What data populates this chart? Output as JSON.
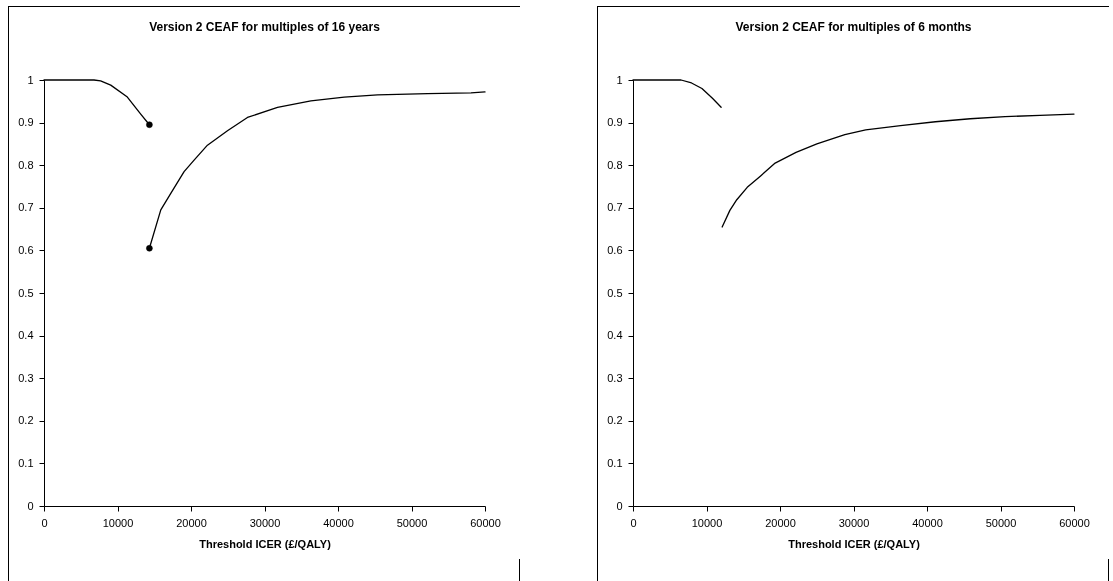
{
  "chart_data": [
    {
      "type": "line",
      "title": "Version 2 CEAF for multiples of 16 years",
      "xlabel": "Threshold ICER (£/QALY)",
      "xlim": [
        0,
        60000
      ],
      "xticks": [
        0,
        10000,
        20000,
        30000,
        40000,
        50000,
        60000
      ],
      "ylim": [
        0,
        1
      ],
      "yticks": [
        0,
        0.1,
        0.2,
        0.3,
        0.4,
        0.5,
        0.6,
        0.7,
        0.8,
        0.9,
        1
      ],
      "series": [
        {
          "color": "#000000",
          "x": [
            0,
            6800,
            7700,
            9080,
            11340,
            13160,
            14340
          ],
          "values": [
            1,
            1,
            0.998,
            0.988,
            0.96,
            0.92,
            0.895
          ]
        },
        {
          "color": "#000000",
          "x": [
            14340,
            15890,
            17250,
            19060,
            20420,
            22240,
            24960,
            27680,
            31770,
            36310,
            40840,
            45380,
            52190,
            58100,
            60000
          ],
          "values": [
            0.605,
            0.695,
            0.734,
            0.785,
            0.812,
            0.847,
            0.881,
            0.912,
            0.936,
            0.951,
            0.96,
            0.965,
            0.968,
            0.97,
            0.972
          ]
        },
        {
          "type": "scatter",
          "color": "#000000",
          "marker": "circle",
          "x": [
            14340,
            14340
          ],
          "values": [
            0.895,
            0.605
          ]
        }
      ]
    },
    {
      "type": "line",
      "title": "Version 2 CEAF for multiples of 6 months",
      "xlabel": "Threshold ICER (£/QALY)",
      "xlim": [
        0,
        60000
      ],
      "xticks": [
        0,
        10000,
        20000,
        30000,
        40000,
        50000,
        60000
      ],
      "ylim": [
        0,
        1
      ],
      "yticks": [
        0,
        0.1,
        0.2,
        0.3,
        0.4,
        0.5,
        0.6,
        0.7,
        0.8,
        0.9,
        1
      ],
      "series": [
        {
          "color": "#000000",
          "x": [
            0,
            6540,
            7960,
            9380,
            10810,
            11990
          ],
          "values": [
            1,
            1,
            0.993,
            0.98,
            0.957,
            0.936
          ]
        },
        {
          "color": "#000000",
          "x": [
            12130,
            13180,
            14120,
            15540,
            17440,
            19340,
            22180,
            25020,
            28820,
            31660,
            36400,
            41140,
            45880,
            50620,
            55360,
            60000
          ],
          "values": [
            0.655,
            0.694,
            0.719,
            0.748,
            0.776,
            0.805,
            0.83,
            0.85,
            0.872,
            0.883,
            0.893,
            0.902,
            0.909,
            0.914,
            0.917,
            0.92
          ]
        }
      ]
    }
  ]
}
